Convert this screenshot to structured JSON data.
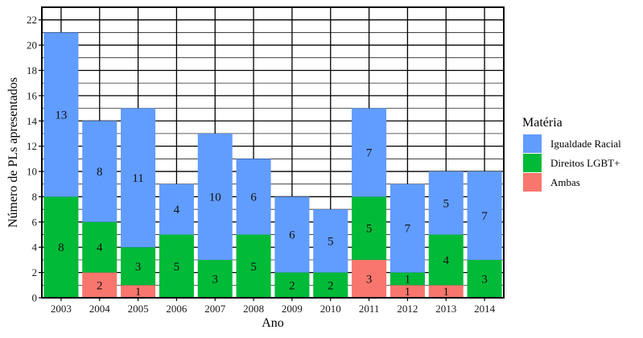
{
  "chart_data": {
    "type": "bar",
    "stacked": true,
    "categories": [
      "2003",
      "2004",
      "2005",
      "2006",
      "2007",
      "2008",
      "2009",
      "2010",
      "2011",
      "2012",
      "2013",
      "2014"
    ],
    "series": [
      {
        "name": "Ambas",
        "color": "#F8766D",
        "values": [
          0,
          2,
          1,
          0,
          0,
          0,
          0,
          0,
          3,
          1,
          1,
          0
        ]
      },
      {
        "name": "Direitos LGBT+",
        "color": "#00BA38",
        "values": [
          8,
          4,
          3,
          5,
          3,
          5,
          2,
          2,
          5,
          1,
          4,
          3
        ]
      },
      {
        "name": "Igualdade Racial",
        "color": "#619CFF",
        "values": [
          13,
          8,
          11,
          4,
          10,
          6,
          6,
          5,
          7,
          7,
          5,
          7
        ]
      }
    ],
    "legend_order": [
      "Igualdade Racial",
      "Direitos LGBT+",
      "Ambas"
    ],
    "title": "",
    "xlabel": "Ano",
    "ylabel": "Número de PLs apresentados",
    "ylim": [
      0,
      23
    ],
    "yticks": [
      0,
      2,
      4,
      6,
      8,
      10,
      12,
      14,
      16,
      18,
      20,
      22
    ],
    "grid": true,
    "legend_title": "Matéria",
    "legend_position": "right"
  }
}
